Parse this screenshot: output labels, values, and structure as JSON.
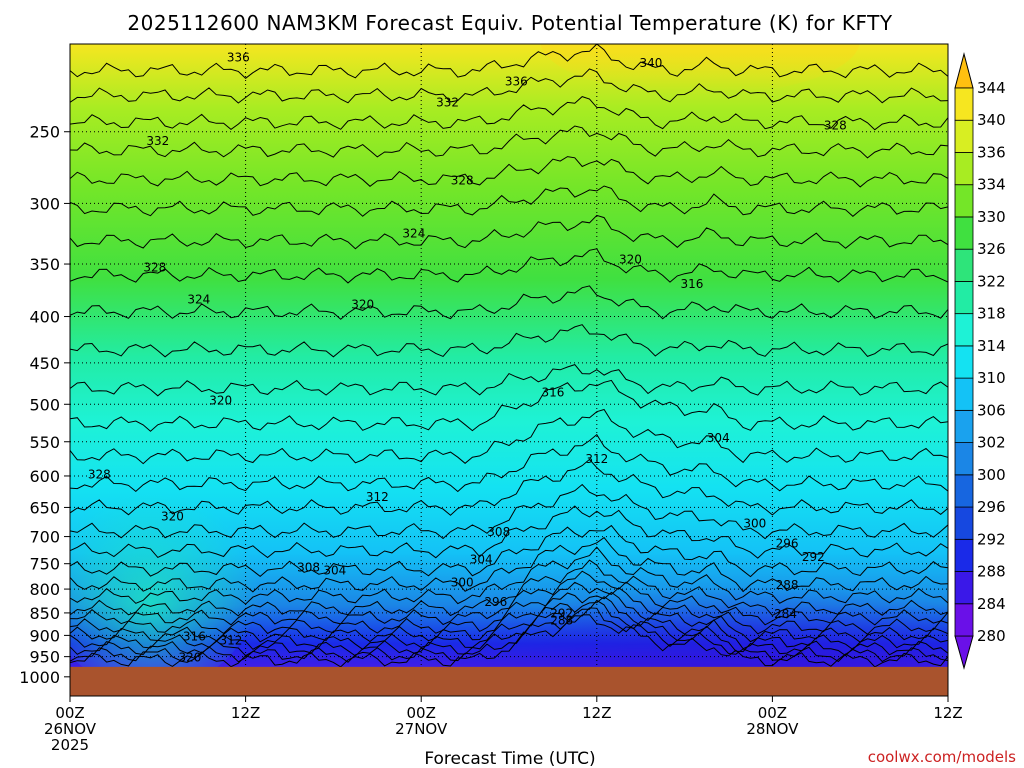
{
  "chart_data": {
    "type": "heatmap",
    "title": "2025112600 NAM3KM Forecast Equiv. Potential Temperature (K) for KFTY",
    "xlabel": "Forecast Time (UTC)",
    "ylabel": "",
    "y_scale": "log-pressure",
    "y_ticks": [
      250,
      300,
      350,
      400,
      450,
      500,
      550,
      600,
      650,
      700,
      750,
      800,
      850,
      900,
      950,
      1000
    ],
    "y_tick_labels": [
      "250",
      "300",
      "350",
      "400",
      "450",
      "500",
      "550",
      "600",
      "650",
      "700",
      "750",
      "800",
      "850",
      "900",
      "950",
      "1000"
    ],
    "ylim": [
      200,
      1050
    ],
    "x_ticks": [
      0,
      12,
      24,
      36,
      48,
      60
    ],
    "x_tick_labels": [
      [
        "00Z",
        "26NOV",
        "2025"
      ],
      [
        "12Z"
      ],
      [
        "00Z",
        "27NOV"
      ],
      [
        "12Z"
      ],
      [
        "00Z",
        "28NOV"
      ],
      [
        "12Z"
      ]
    ],
    "xlim": [
      0,
      60
    ],
    "grid": true,
    "ground_level_hpa": 975,
    "colorbar": {
      "orientation": "vertical",
      "placement": "right",
      "levels": [
        280,
        284,
        288,
        292,
        296,
        300,
        302,
        306,
        310,
        314,
        318,
        322,
        326,
        330,
        334,
        336,
        340,
        344
      ],
      "colors": [
        "#6a10e8",
        "#3a18e8",
        "#1a2ae8",
        "#1648e0",
        "#1766e0",
        "#1b86e6",
        "#1aa2ee",
        "#14c2f6",
        "#14e2f2",
        "#1ef2d6",
        "#22eca4",
        "#2ee47a",
        "#40e040",
        "#74e628",
        "#a8ec22",
        "#d8ee22",
        "#f6e620",
        "#ffc010"
      ]
    },
    "contour_labels": [
      {
        "t": 11.5,
        "p": 207,
        "v": "336"
      },
      {
        "t": 25.8,
        "p": 232,
        "v": "332"
      },
      {
        "t": 30.5,
        "p": 220,
        "v": "336"
      },
      {
        "t": 39.7,
        "p": 210,
        "v": "340"
      },
      {
        "t": 6.0,
        "p": 256,
        "v": "332"
      },
      {
        "t": 26.8,
        "p": 283,
        "v": "328"
      },
      {
        "t": 52.3,
        "p": 246,
        "v": "328"
      },
      {
        "t": 23.5,
        "p": 324,
        "v": "324"
      },
      {
        "t": 38.3,
        "p": 346,
        "v": "320"
      },
      {
        "t": 42.5,
        "p": 368,
        "v": "316"
      },
      {
        "t": 5.8,
        "p": 353,
        "v": "328"
      },
      {
        "t": 8.8,
        "p": 383,
        "v": "324"
      },
      {
        "t": 20.0,
        "p": 388,
        "v": "320"
      },
      {
        "t": 33.0,
        "p": 485,
        "v": "316"
      },
      {
        "t": 10.3,
        "p": 495,
        "v": "320"
      },
      {
        "t": 36.0,
        "p": 575,
        "v": "312"
      },
      {
        "t": 44.3,
        "p": 545,
        "v": "304"
      },
      {
        "t": 21.0,
        "p": 633,
        "v": "312"
      },
      {
        "t": 29.3,
        "p": 692,
        "v": "308"
      },
      {
        "t": 46.8,
        "p": 677,
        "v": "300"
      },
      {
        "t": 49.0,
        "p": 712,
        "v": "296"
      },
      {
        "t": 50.8,
        "p": 737,
        "v": "292"
      },
      {
        "t": 2.0,
        "p": 598,
        "v": "328"
      },
      {
        "t": 7.0,
        "p": 665,
        "v": "320"
      },
      {
        "t": 28.1,
        "p": 742,
        "v": "304"
      },
      {
        "t": 16.3,
        "p": 757,
        "v": "308"
      },
      {
        "t": 18.1,
        "p": 763,
        "v": "304"
      },
      {
        "t": 26.8,
        "p": 787,
        "v": "300"
      },
      {
        "t": 29.1,
        "p": 827,
        "v": "296"
      },
      {
        "t": 33.6,
        "p": 851,
        "v": "292"
      },
      {
        "t": 33.6,
        "p": 867,
        "v": "288"
      },
      {
        "t": 49.0,
        "p": 792,
        "v": "288"
      },
      {
        "t": 48.9,
        "p": 852,
        "v": "284"
      },
      {
        "t": 8.5,
        "p": 902,
        "v": "316"
      },
      {
        "t": 11.0,
        "p": 912,
        "v": "312"
      },
      {
        "t": 8.2,
        "p": 952,
        "v": "320"
      }
    ]
  },
  "credit": "coolwx.com/models"
}
